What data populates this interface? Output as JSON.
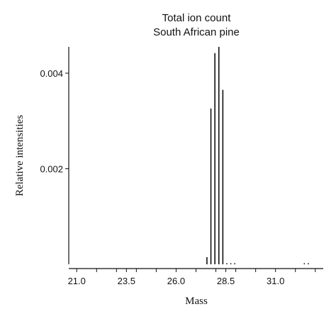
{
  "chart_data": {
    "type": "bar",
    "title": "Total ion count",
    "subtitle": "South African pine",
    "xlabel": "Mass",
    "ylabel": "Relative intensities",
    "xlim": [
      20.6,
      33.4
    ],
    "ylim": [
      0,
      0.00455
    ],
    "xticks": [
      21.0,
      22.0,
      23.0,
      23.5,
      24.0,
      25.0,
      26.0,
      27.0,
      28.0,
      28.5,
      29.0,
      30.0,
      31.0,
      32.0,
      33.0
    ],
    "xtick_labels": [
      {
        "value": 21.0,
        "label": "21.0"
      },
      {
        "value": 23.5,
        "label": "23.5"
      },
      {
        "value": 26.0,
        "label": "26.0"
      },
      {
        "value": 28.5,
        "label": "28.5"
      },
      {
        "value": 31.0,
        "label": "31.0"
      }
    ],
    "yticks": [
      {
        "value": 0.002,
        "label": "0.002"
      },
      {
        "value": 0.004,
        "label": "0.004"
      }
    ],
    "points": [
      {
        "x": 27.55,
        "y": 0.00015
      },
      {
        "x": 27.75,
        "y": 0.00326
      },
      {
        "x": 27.95,
        "y": 0.00442
      },
      {
        "x": 28.15,
        "y": 0.00455
      },
      {
        "x": 28.35,
        "y": 0.00365
      },
      {
        "x": 28.55,
        "y": 2e-05
      },
      {
        "x": 28.75,
        "y": 2e-05
      },
      {
        "x": 28.95,
        "y": 2e-05
      },
      {
        "x": 32.45,
        "y": 2e-05
      },
      {
        "x": 32.65,
        "y": 2e-05
      }
    ],
    "grid": false,
    "legend": "none"
  }
}
